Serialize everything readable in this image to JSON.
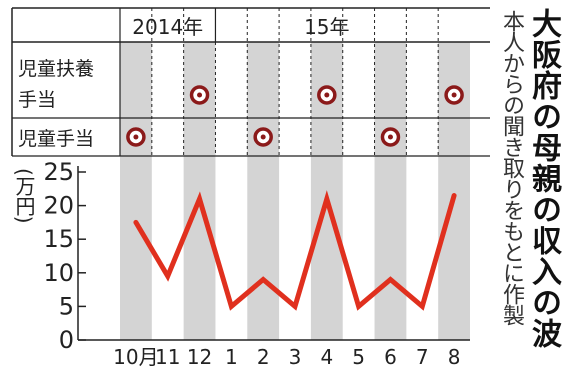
{
  "title": "大阪府の母親の収入の波",
  "source": "本人からの聞き取りをもとに作製",
  "year_labels": {
    "y2014": "2014年",
    "y15": "15年"
  },
  "row_labels": {
    "fuyo_line1": "児童扶養",
    "fuyo_line2": "手当",
    "jido": "児童手当"
  },
  "unit_label": "(万円)",
  "colors": {
    "line": "#e0301e",
    "shade": "#d4d4d4",
    "marker": "#8b1a1a"
  },
  "chart_data": {
    "type": "line",
    "categories": [
      "10月",
      "11",
      "12",
      "1",
      "2",
      "3",
      "4",
      "5",
      "6",
      "7",
      "8"
    ],
    "values": [
      17.5,
      9.5,
      21,
      5,
      9,
      5,
      21,
      5,
      9,
      5,
      21.5
    ],
    "ylim": [
      0,
      25
    ],
    "yticks": [
      "0",
      "5",
      "10",
      "15",
      "20",
      "25"
    ],
    "markers": {
      "jido_teate_months": [
        0,
        4,
        8
      ],
      "jido_fuyo_teate_months": [
        2,
        6,
        10
      ]
    }
  }
}
